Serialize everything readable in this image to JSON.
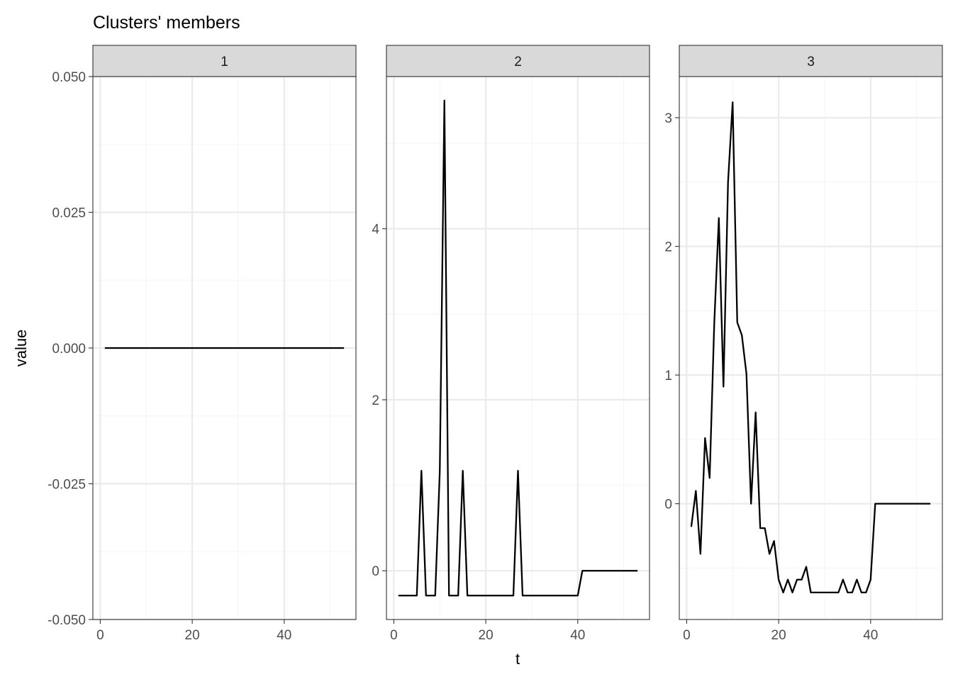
{
  "chart_data": {
    "type": "line",
    "title": "Clusters' members",
    "xlabel": "t",
    "ylabel": "value",
    "facets": [
      {
        "strip_label": "1",
        "xlim": [
          -1.6,
          55.6
        ],
        "ylim": [
          -0.05,
          0.05
        ],
        "x_ticks": [
          "0",
          "20",
          "40"
        ],
        "y_ticks": [
          "-0.050",
          "-0.025",
          "0.000",
          "0.025",
          "0.050"
        ],
        "x": [
          1,
          53
        ],
        "y": [
          0.0,
          0.0
        ]
      },
      {
        "strip_label": "2",
        "xlim": [
          -1.6,
          55.6
        ],
        "ylim": [
          -0.57,
          5.78
        ],
        "x_ticks": [
          "0",
          "20",
          "40"
        ],
        "y_ticks": [
          "0",
          "2",
          "4"
        ],
        "x": [
          1,
          2,
          3,
          4,
          5,
          6,
          7,
          8,
          9,
          10,
          11,
          12,
          13,
          14,
          15,
          16,
          17,
          18,
          19,
          20,
          21,
          22,
          23,
          24,
          25,
          26,
          27,
          28,
          29,
          30,
          31,
          32,
          33,
          34,
          35,
          36,
          37,
          38,
          39,
          40,
          41,
          42,
          43,
          44,
          45,
          46,
          47,
          48,
          49,
          50,
          51,
          52,
          53
        ],
        "y": [
          -0.29,
          -0.29,
          -0.29,
          -0.29,
          -0.29,
          1.17,
          -0.29,
          -0.29,
          -0.29,
          1.17,
          5.5,
          -0.29,
          -0.29,
          -0.29,
          1.17,
          -0.29,
          -0.29,
          -0.29,
          -0.29,
          -0.29,
          -0.29,
          -0.29,
          -0.29,
          -0.29,
          -0.29,
          -0.29,
          1.17,
          -0.29,
          -0.29,
          -0.29,
          -0.29,
          -0.29,
          -0.29,
          -0.29,
          -0.29,
          -0.29,
          -0.29,
          -0.29,
          -0.29,
          -0.29,
          0.0,
          0.0,
          0.0,
          0.0,
          0.0,
          0.0,
          0.0,
          0.0,
          0.0,
          0.0,
          0.0,
          0.0,
          0.0
        ]
      },
      {
        "strip_label": "3",
        "xlim": [
          -1.6,
          55.6
        ],
        "ylim": [
          -0.9,
          3.32
        ],
        "x_ticks": [
          "0",
          "20",
          "40"
        ],
        "y_ticks": [
          "0",
          "1",
          "2",
          "3"
        ],
        "x": [
          1,
          2,
          3,
          4,
          5,
          6,
          7,
          8,
          9,
          10,
          11,
          12,
          13,
          14,
          15,
          16,
          17,
          18,
          19,
          20,
          21,
          22,
          23,
          24,
          25,
          26,
          27,
          28,
          29,
          30,
          31,
          32,
          33,
          34,
          35,
          36,
          37,
          38,
          39,
          40,
          41,
          42,
          43,
          44,
          45,
          46,
          47,
          48,
          49,
          50,
          51,
          52,
          53
        ],
        "y": [
          -0.18,
          0.1,
          -0.39,
          0.51,
          0.2,
          1.4,
          2.22,
          0.91,
          2.5,
          3.12,
          1.41,
          1.31,
          1.01,
          0.0,
          0.71,
          -0.19,
          -0.19,
          -0.39,
          -0.29,
          -0.59,
          -0.69,
          -0.59,
          -0.69,
          -0.59,
          -0.59,
          -0.49,
          -0.69,
          -0.69,
          -0.69,
          -0.69,
          -0.69,
          -0.69,
          -0.69,
          -0.59,
          -0.69,
          -0.69,
          -0.59,
          -0.69,
          -0.69,
          -0.59,
          0.0,
          0.0,
          0.0,
          0.0,
          0.0,
          0.0,
          0.0,
          0.0,
          0.0,
          0.0,
          0.0,
          0.0,
          0.0
        ]
      }
    ],
    "grid": true,
    "colors": {
      "line": "#000000",
      "grid_major": "#ebebeb",
      "grid_minor": "#f5f5f5",
      "strip_fill": "#d9d9d9",
      "panel_border": "#333333",
      "tick_text": "#4d4d4d"
    }
  }
}
